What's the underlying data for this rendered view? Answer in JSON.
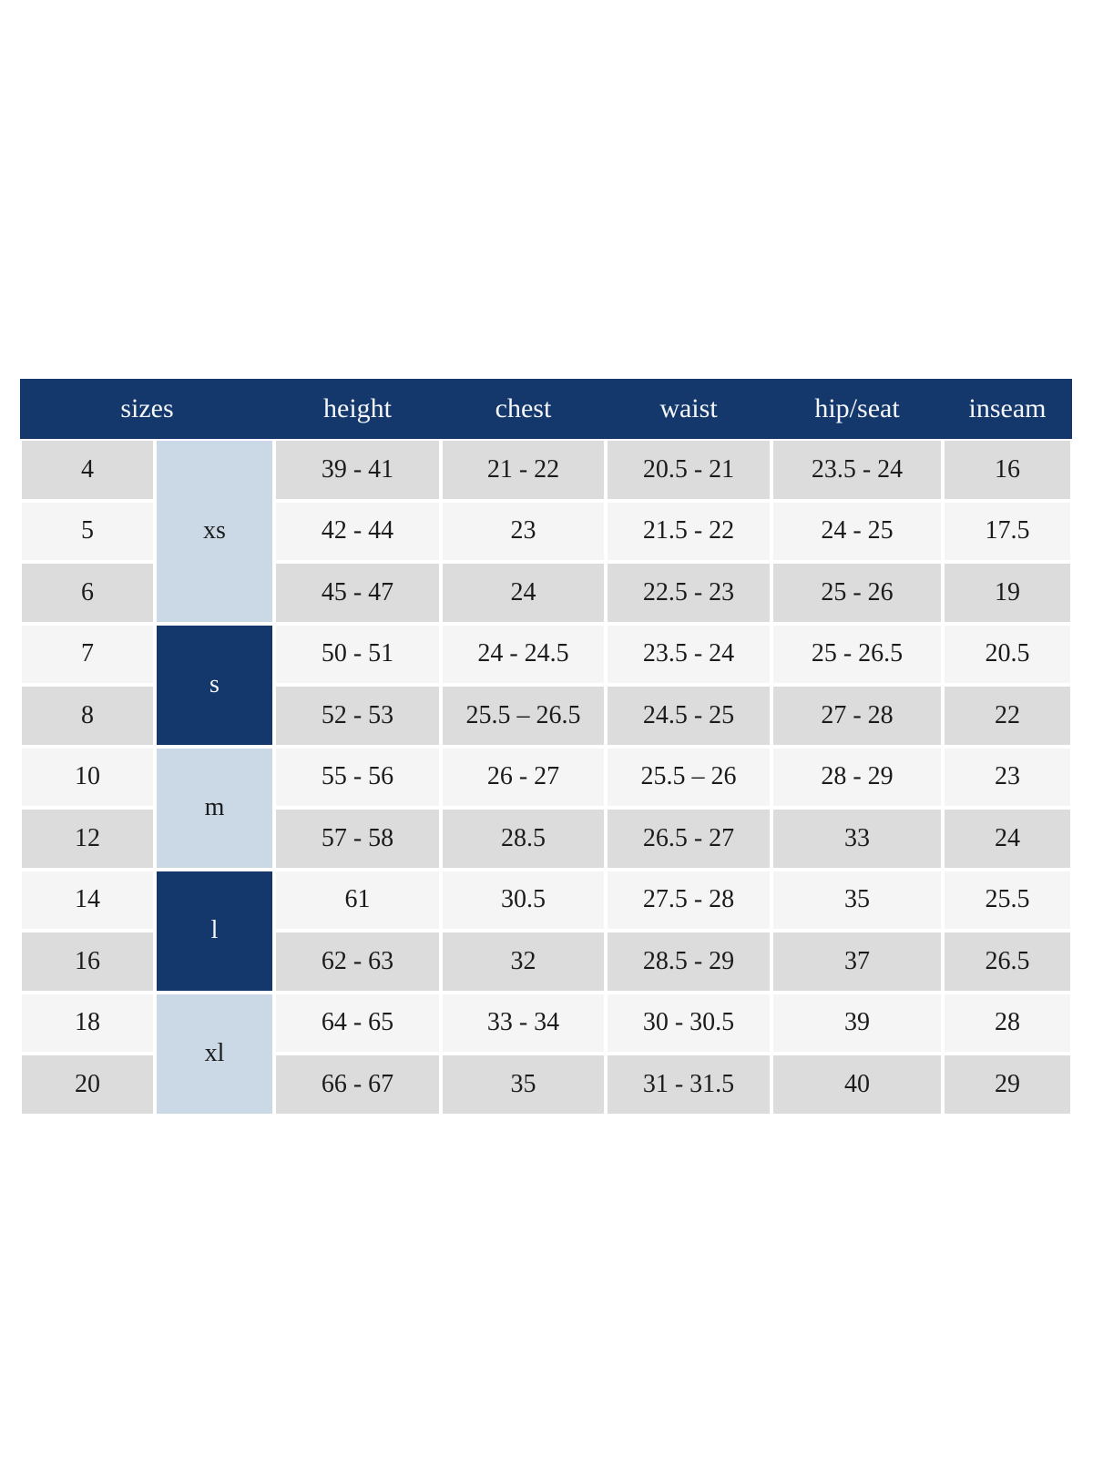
{
  "table": {
    "header": {
      "sizes": "sizes",
      "height": "height",
      "chest": "chest",
      "waist": "waist",
      "hip_seat": "hip/seat",
      "inseam": "inseam"
    },
    "groups": [
      {
        "label": "xs",
        "variant": "light",
        "span": 3
      },
      {
        "label": "s",
        "variant": "dark",
        "span": 2
      },
      {
        "label": "m",
        "variant": "light",
        "span": 2
      },
      {
        "label": "l",
        "variant": "dark",
        "span": 2
      },
      {
        "label": "xl",
        "variant": "light",
        "span": 2
      }
    ],
    "rows": [
      {
        "size": "4",
        "group": "xs",
        "height": "39 - 41",
        "chest": "21 - 22",
        "waist": "20.5 - 21",
        "hip_seat": "23.5 - 24",
        "inseam": "16",
        "shade": "gray"
      },
      {
        "size": "5",
        "group": "xs",
        "height": "42 - 44",
        "chest": "23",
        "waist": "21.5 - 22",
        "hip_seat": "24 - 25",
        "inseam": "17.5",
        "shade": "light"
      },
      {
        "size": "6",
        "group": "xs",
        "height": "45 - 47",
        "chest": "24",
        "waist": "22.5 - 23",
        "hip_seat": "25 - 26",
        "inseam": "19",
        "shade": "gray"
      },
      {
        "size": "7",
        "group": "s",
        "height": "50 - 51",
        "chest": "24 - 24.5",
        "waist": "23.5 - 24",
        "hip_seat": "25 - 26.5",
        "inseam": "20.5",
        "shade": "light"
      },
      {
        "size": "8",
        "group": "s",
        "height": "52 - 53",
        "chest": "25.5 – 26.5",
        "waist": "24.5 - 25",
        "hip_seat": "27 - 28",
        "inseam": "22",
        "shade": "gray"
      },
      {
        "size": "10",
        "group": "m",
        "height": "55 - 56",
        "chest": "26 - 27",
        "waist": "25.5 – 26",
        "hip_seat": "28 - 29",
        "inseam": "23",
        "shade": "light"
      },
      {
        "size": "12",
        "group": "m",
        "height": "57 - 58",
        "chest": "28.5",
        "waist": "26.5 - 27",
        "hip_seat": "33",
        "inseam": "24",
        "shade": "gray"
      },
      {
        "size": "14",
        "group": "l",
        "height": "61",
        "chest": "30.5",
        "waist": "27.5 - 28",
        "hip_seat": "35",
        "inseam": "25.5",
        "shade": "light"
      },
      {
        "size": "16",
        "group": "l",
        "height": "62 - 63",
        "chest": "32",
        "waist": "28.5 - 29",
        "hip_seat": "37",
        "inseam": "26.5",
        "shade": "gray"
      },
      {
        "size": "18",
        "group": "xl",
        "height": "64 - 65",
        "chest": "33 - 34",
        "waist": "30 - 30.5",
        "hip_seat": "39",
        "inseam": "28",
        "shade": "light"
      },
      {
        "size": "20",
        "group": "xl",
        "height": "66 - 67",
        "chest": "35",
        "waist": "31 - 31.5",
        "hip_seat": "40",
        "inseam": "29",
        "shade": "gray"
      }
    ],
    "colors": {
      "header_bg": "#14386c",
      "header_text": "#f5f7fa",
      "group_light": "#cbd8e6",
      "group_dark": "#14386c",
      "row_gray": "#dcdcdc",
      "row_light": "#f5f5f5",
      "body_text": "#1b1b1b"
    }
  },
  "chart_data": {
    "type": "table",
    "columns": [
      "sizes",
      "height",
      "chest",
      "waist",
      "hip/seat",
      "inseam"
    ],
    "merged_size_groups": [
      {
        "label": "xs",
        "sizes": [
          "4",
          "5",
          "6"
        ]
      },
      {
        "label": "s",
        "sizes": [
          "7",
          "8"
        ]
      },
      {
        "label": "m",
        "sizes": [
          "10",
          "12"
        ]
      },
      {
        "label": "l",
        "sizes": [
          "14",
          "16"
        ]
      },
      {
        "label": "xl",
        "sizes": [
          "18",
          "20"
        ]
      }
    ],
    "rows": [
      [
        "4",
        "39 - 41",
        "21 - 22",
        "20.5 - 21",
        "23.5 - 24",
        "16"
      ],
      [
        "5",
        "42 - 44",
        "23",
        "21.5 - 22",
        "24 - 25",
        "17.5"
      ],
      [
        "6",
        "45 - 47",
        "24",
        "22.5 - 23",
        "25 - 26",
        "19"
      ],
      [
        "7",
        "50 - 51",
        "24 - 24.5",
        "23.5 - 24",
        "25 - 26.5",
        "20.5"
      ],
      [
        "8",
        "52 - 53",
        "25.5 – 26.5",
        "24.5 - 25",
        "27 - 28",
        "22"
      ],
      [
        "10",
        "55 - 56",
        "26 - 27",
        "25.5 – 26",
        "28 - 29",
        "23"
      ],
      [
        "12",
        "57 - 58",
        "28.5",
        "26.5 - 27",
        "33",
        "24"
      ],
      [
        "14",
        "61",
        "30.5",
        "27.5 - 28",
        "35",
        "25.5"
      ],
      [
        "16",
        "62 - 63",
        "32",
        "28.5 - 29",
        "37",
        "26.5"
      ],
      [
        "18",
        "64 - 65",
        "33 - 34",
        "30 - 30.5",
        "39",
        "28"
      ],
      [
        "20",
        "66 - 67",
        "35",
        "31 - 31.5",
        "40",
        "29"
      ]
    ]
  }
}
